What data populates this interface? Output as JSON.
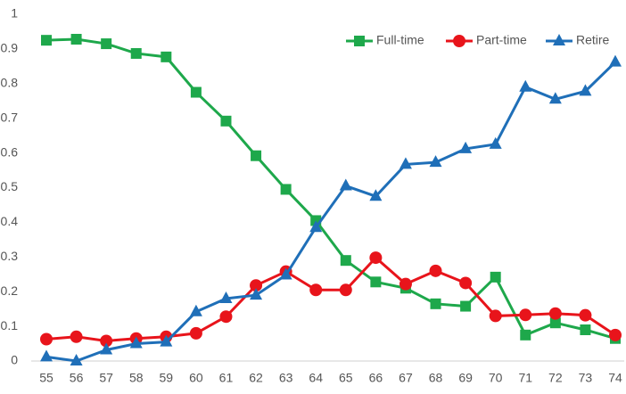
{
  "chart_data": {
    "type": "line",
    "categories": [
      "55",
      "56",
      "57",
      "58",
      "59",
      "60",
      "61",
      "62",
      "63",
      "64",
      "65",
      "66",
      "67",
      "68",
      "69",
      "70",
      "71",
      "72",
      "73",
      "74"
    ],
    "series": [
      {
        "name": "Full-time",
        "color": "#1ea84b",
        "marker": "square",
        "values": [
          0.925,
          0.928,
          0.915,
          0.887,
          0.877,
          0.775,
          0.692,
          0.592,
          0.495,
          0.405,
          0.29,
          0.228,
          0.21,
          0.165,
          0.158,
          0.242,
          0.075,
          0.11,
          0.09,
          0.065
        ]
      },
      {
        "name": "Part-time",
        "color": "#e8141b",
        "marker": "circle",
        "values": [
          0.063,
          0.07,
          0.058,
          0.065,
          0.07,
          0.08,
          0.128,
          0.218,
          0.258,
          0.205,
          0.205,
          0.298,
          0.222,
          0.26,
          0.225,
          0.13,
          0.133,
          0.137,
          0.132,
          0.075
        ]
      },
      {
        "name": "Retire",
        "color": "#1f6fb8",
        "marker": "triangle",
        "values": [
          0.012,
          0,
          0.032,
          0.05,
          0.055,
          0.142,
          0.18,
          0.19,
          0.248,
          0.385,
          0.505,
          0.475,
          0.567,
          0.573,
          0.612,
          0.625,
          0.79,
          0.755,
          0.778,
          0.862
        ]
      }
    ],
    "ylim": [
      0,
      1
    ],
    "yticks": [
      0,
      0.1,
      0.2,
      0.3,
      0.4,
      0.5,
      0.6,
      0.7,
      0.8,
      0.9,
      1
    ],
    "grid": false,
    "legend": "top-right"
  }
}
